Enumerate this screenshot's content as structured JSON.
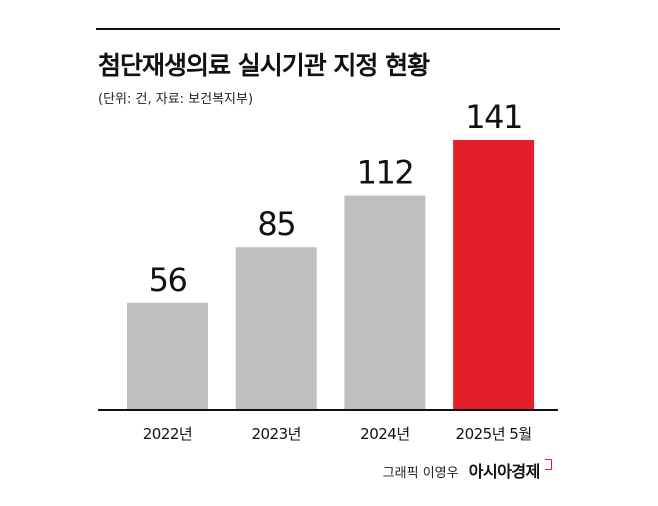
{
  "header": {
    "title": "첨단재생의료 실시기관 지정 현황",
    "subtitle": "(단위: 건, 자료: 보건복지부)"
  },
  "chart_data": {
    "type": "bar",
    "title": "첨단재생의료 실시기관 지정 현황",
    "subtitle": "(단위: 건, 자료: 보건복지부)",
    "categories": [
      "2022년",
      "2023년",
      "2024년",
      "2025년 5월"
    ],
    "values": [
      56,
      85,
      112,
      141
    ],
    "value_labels": [
      "56",
      "85",
      "112",
      "141"
    ],
    "xlabel": "",
    "ylabel": "",
    "ylim": [
      0,
      141
    ],
    "grid": false,
    "legend": "none",
    "colors": {
      "default": "#bfbfc1",
      "highlight": "#e3202a",
      "baseline": "#111111"
    },
    "highlight_index": 3
  },
  "credit": {
    "text": "그래픽 이영우",
    "brand": "아시아경제"
  }
}
